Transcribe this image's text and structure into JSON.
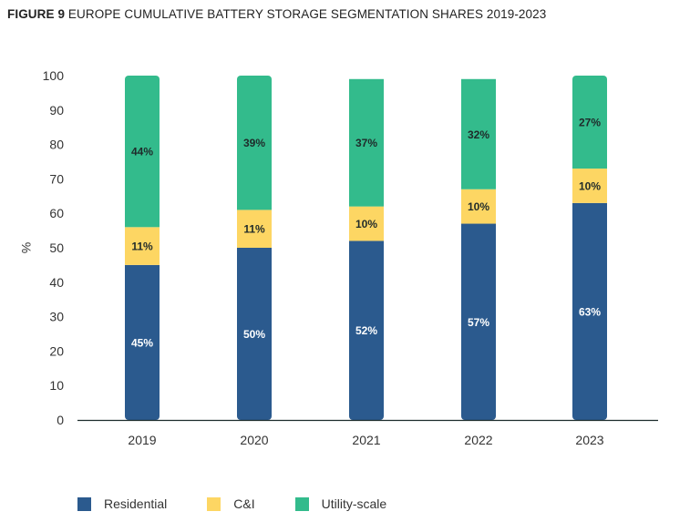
{
  "title_prefix": "FIGURE 9",
  "title_text": "EUROPE CUMULATIVE BATTERY STORAGE SEGMENTATION SHARES 2019-2023",
  "chart_data": {
    "type": "bar",
    "stacked": true,
    "title": "FIGURE 9 EUROPE CUMULATIVE BATTERY STORAGE SEGMENTATION SHARES 2019-2023",
    "xlabel": "",
    "ylabel": "%",
    "ylim": [
      0,
      100
    ],
    "yticks": [
      0,
      10,
      20,
      30,
      40,
      50,
      60,
      70,
      80,
      90,
      100
    ],
    "grid": false,
    "legend_position": "bottom-left",
    "categories": [
      "2019",
      "2020",
      "2021",
      "2022",
      "2023"
    ],
    "series": [
      {
        "name": "Residential",
        "color": "#2b5a8e",
        "label_color": "#ffffff",
        "values": [
          45,
          50,
          52,
          57,
          63
        ]
      },
      {
        "name": "C&I",
        "color": "#fdd663",
        "label_color": "#1f2a2a",
        "values": [
          11,
          11,
          10,
          10,
          10
        ]
      },
      {
        "name": "Utility-scale",
        "color": "#33bb8c",
        "label_color": "#1f2a2a",
        "values": [
          44,
          39,
          37,
          32,
          27
        ]
      }
    ]
  }
}
